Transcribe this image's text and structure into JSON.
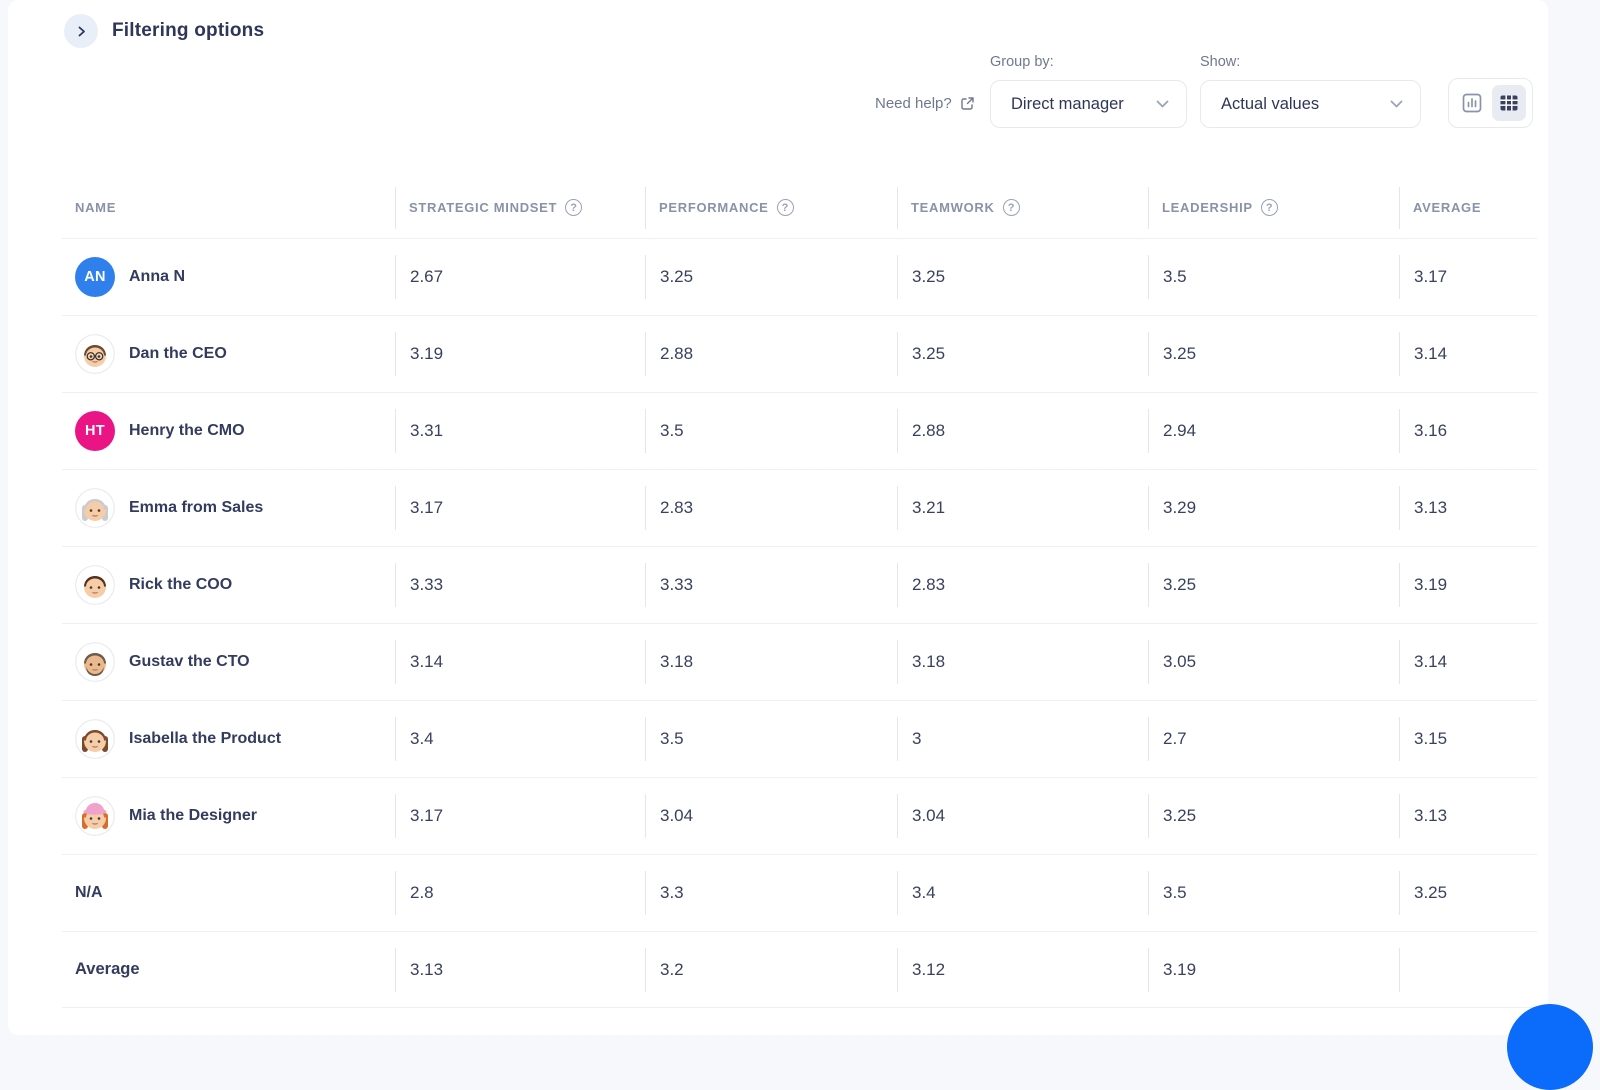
{
  "colors": {
    "page_bg": "#F7F8FB",
    "card_bg": "#FFFFFF",
    "accent_blue": "#0B6BFB",
    "text_dark": "#2E3659",
    "text_muted": "#6F7890",
    "header_gray": "#8A92A9",
    "avatar_blue": "#2F80ED",
    "avatar_pink": "#EB1485"
  },
  "filter_bar": {
    "title": "Filtering options",
    "toggle_icon": "chevron-right"
  },
  "toolbar": {
    "need_help_label": "Need help?",
    "group_by_label": "Group by:",
    "group_by_value": "Direct manager",
    "show_label": "Show:",
    "show_value": "Actual values",
    "view_toggle": {
      "options": [
        "chart",
        "table"
      ],
      "selected": "table"
    }
  },
  "table": {
    "columns": [
      {
        "label": "NAME",
        "help": false
      },
      {
        "label": "STRATEGIC MINDSET",
        "help": true
      },
      {
        "label": "PERFORMANCE",
        "help": true
      },
      {
        "label": "TEAMWORK",
        "help": true
      },
      {
        "label": "LEADERSHIP",
        "help": true
      },
      {
        "label": "AVERAGE",
        "help": false
      }
    ],
    "rows": [
      {
        "name": "Anna N",
        "avatar": {
          "kind": "initials",
          "initials": "AN",
          "bg": "#2F80ED"
        },
        "values": [
          "2.67",
          "3.25",
          "3.25",
          "3.5",
          "3.17"
        ]
      },
      {
        "name": "Dan the CEO",
        "avatar": {
          "kind": "memoji",
          "hair": "#6D4A31",
          "skin": "#F6CDA6",
          "glasses": true
        },
        "values": [
          "3.19",
          "2.88",
          "3.25",
          "3.25",
          "3.14"
        ]
      },
      {
        "name": "Henry the CMO",
        "avatar": {
          "kind": "initials",
          "initials": "HT",
          "bg": "#EB1485"
        },
        "values": [
          "3.31",
          "3.5",
          "2.88",
          "2.94",
          "3.16"
        ]
      },
      {
        "name": "Emma from Sales",
        "avatar": {
          "kind": "memoji",
          "hair": "#C9CCD1",
          "skin": "#F6CDA6",
          "long_hair": true
        },
        "values": [
          "3.17",
          "2.83",
          "3.21",
          "3.29",
          "3.13"
        ]
      },
      {
        "name": "Rick the COO",
        "avatar": {
          "kind": "memoji",
          "hair": "#55331F",
          "skin": "#F6CDA6"
        },
        "values": [
          "3.33",
          "3.33",
          "2.83",
          "3.25",
          "3.19"
        ]
      },
      {
        "name": "Gustav the CTO",
        "avatar": {
          "kind": "memoji",
          "hair": "#6E5B49",
          "skin": "#EBB98C",
          "beard": true
        },
        "values": [
          "3.14",
          "3.18",
          "3.18",
          "3.05",
          "3.14"
        ]
      },
      {
        "name": "Isabella the Product",
        "avatar": {
          "kind": "memoji",
          "hair": "#7B4A2D",
          "skin": "#F6CDA6",
          "long_hair": true
        },
        "values": [
          "3.4",
          "3.5",
          "3",
          "2.7",
          "3.15"
        ]
      },
      {
        "name": "Mia the Designer",
        "avatar": {
          "kind": "memoji",
          "hair": "#D96B2B",
          "skin": "#F6CDA6",
          "long_hair": true,
          "hat": "#F0A2CC"
        },
        "values": [
          "3.17",
          "3.04",
          "3.04",
          "3.25",
          "3.13"
        ]
      },
      {
        "name": "N/A",
        "avatar": null,
        "values": [
          "2.8",
          "3.3",
          "3.4",
          "3.5",
          "3.25"
        ]
      },
      {
        "name": "Average",
        "avatar": null,
        "bold": true,
        "values": [
          "3.13",
          "3.2",
          "3.12",
          "3.19",
          ""
        ]
      }
    ]
  },
  "fab": {
    "icon": "chat-bubble"
  }
}
